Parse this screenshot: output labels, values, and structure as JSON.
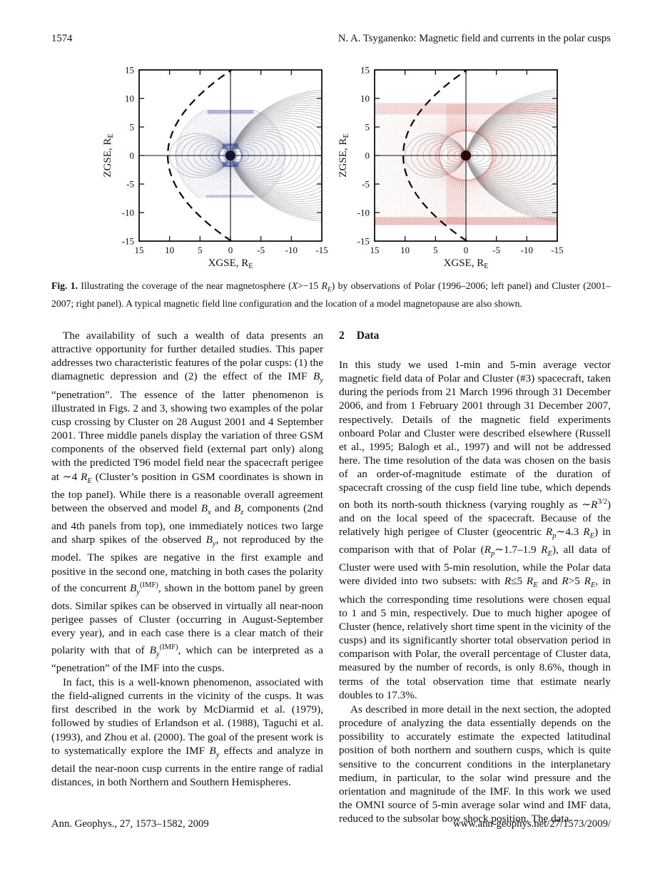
{
  "page": {
    "page_number": "1574",
    "running_title": "N. A. Tsyganenko: Magnetic field and currents in the polar cusps",
    "footer_left": "Ann. Geophys., 27, 1573–1582, 2009",
    "footer_right": "www.ann-geophys.net/27/1573/2009/"
  },
  "figure": {
    "caption_html": "<b>Fig. 1.</b> Illustrating the coverage of the near magnetosphere (<i>X</i>&gt;−15 <i>R<sub>E</sub></i>) by observations of Polar (1996–2006; left panel) and Cluster (2001–2007; right panel). A typical magnetic field line configuration and the location of a model magnetopause are also shown.",
    "axis": {
      "x_ticks": [
        15,
        10,
        5,
        0,
        -5,
        -10,
        -15
      ],
      "y_ticks": [
        15,
        10,
        5,
        0,
        -5,
        -10,
        -15
      ],
      "x_label": "XGSE, R",
      "x_label_sub": "E",
      "y_label": "ZGSE, R",
      "y_label_sub": "E"
    },
    "magnetopause": {
      "apex": 10.3,
      "flare": 21.5
    },
    "field_lines": {
      "color": "#9d9d9d",
      "night_L_max": 30,
      "day_L_max": 10
    },
    "panels": [
      {
        "id": "polar",
        "color": "#2e3d92",
        "dot_color": "#14142e",
        "halo_opacity": 0.3,
        "orbit": {
          "a": 5.4,
          "b": 4.02,
          "c": 3.6,
          "count": 72,
          "opacity": 0.3
        },
        "clip_z": [
          -7.4,
          8.0
        ],
        "patches": [
          {
            "x": [
              -3.8,
              3.8
            ],
            "z": [
              7.3,
              8.0
            ],
            "o": 0.35
          },
          {
            "x": [
              -4.0,
              4.0
            ],
            "z": [
              -7.4,
              -6.9
            ],
            "o": 0.25
          },
          {
            "x": [
              -1.3,
              1.3
            ],
            "z": [
              1.1,
              2.1
            ],
            "o": 0.5
          },
          {
            "x": [
              -1.3,
              1.3
            ],
            "z": [
              -2.0,
              -1.1
            ],
            "o": 0.5
          }
        ]
      },
      {
        "id": "cluster",
        "color": "#c23b2e",
        "dot_color": "#230a08",
        "halo_opacity": 0.25,
        "orbit": {
          "a": 11.95,
          "b": 9.18,
          "c": 7.65,
          "count": 100,
          "opacity": 0.26
        },
        "clip_z": [
          -12.2,
          9.2
        ],
        "patches": [
          {
            "x": [
              -15,
              15
            ],
            "z": [
              -12.2,
              -10.8
            ],
            "o": 0.28
          },
          {
            "x": [
              -15,
              15
            ],
            "z": [
              7.2,
              9.2
            ],
            "o": 0.16
          },
          {
            "x": [
              0.2,
              3.2
            ],
            "z": [
              -12.0,
              9.0
            ],
            "o": 0.12
          }
        ]
      }
    ]
  },
  "content": {
    "left": {
      "p1": "The availability of such a wealth of data presents an attractive opportunity for further detailed studies.  This paper addresses two characteristic features of the polar cusps: (1) the diamagnetic depression and (2) the effect of the IMF <i>B<sub>y</sub></i> “penetration”. The essence of the latter phenomenon is illustrated in Figs. 2 and 3, showing two examples of the polar cusp crossing by Cluster on 28 August 2001 and 4 September 2001. Three middle panels display the variation of three GSM components of the observed field (external part only) along with the predicted T96 model field near the spacecraft perigee at ∼4 <i>R<sub>E</sub></i> (Cluster’s position in GSM coordinates is shown in the top panel).  While there is a reasonable overall agreement between the observed and model <i>B<sub>x</sub></i> and <i>B<sub>z</sub></i> components (2nd and 4th panels from top), one immediately notices two large and sharp spikes of the observed <i>B<sub>y</sub></i>, not reproduced by the model. The spikes are negative in the first example and positive in the second one, matching in both cases the polarity of the concurrent <i>B<sub>y</sub></i><sup>(IMF)</sup>, shown in the bottom panel by green dots.  Similar spikes can be observed in virtually all near-noon perigee passes of Cluster (occurring in August-September every year), and in each case there is a clear match of their polarity with that of <i>B<sub>y</sub></i><sup>(IMF)</sup>, which can be interpreted as a “penetration” of the IMF into the cusps.",
      "p2": "In fact, this is a well-known phenomenon, associated with the field-aligned currents in the vicinity of the cusps.  It was first described in the work by McDiarmid et al. (1979), followed by studies of Erlandson et al. (1988), Taguchi et al. (1993), and Zhou et al. (2000).  The goal of the present work is to systematically explore the IMF <i>B<sub>y</sub></i> effects and analyze in detail the near-noon cusp currents in the entire range of radial distances, in both Northern and Southern Hemispheres."
    },
    "section": {
      "number": "2",
      "title": "Data"
    },
    "right": {
      "p1": "In this study we used 1-min and 5-min average vector magnetic field data of Polar and Cluster (#3) spacecraft, taken during the periods from 21 March 1996 through 31 December 2006, and from 1 February 2001 through 31 December 2007, respectively.  Details of the magnetic field experiments onboard Polar and Cluster were described elsewhere (Russell et al., 1995; Balogh et al., 1997) and will not be addressed here. The time resolution of the data was chosen on the basis of an order-of-magnitude estimate of the duration of spacecraft crossing of the cusp field line tube, which depends on both its north-south thickness (varying roughly as ∼<i>R</i><sup>3/2</sup>) and on the local speed of the spacecraft.  Because of the relatively high perigee of Cluster (geocentric <i>R<sub>p</sub></i>∼4.3 <i>R<sub>E</sub></i>) in comparison with that of Polar (<i>R<sub>p</sub></i>∼1.7–1.9 <i>R<sub>E</sub></i>), all data of Cluster were used with 5-min resolution, while the Polar data were divided into two subsets:  with <i>R</i>≤5 <i>R<sub>E</sub></i> and <i>R</i>&gt;5 <i>R<sub>E</sub></i>, in which the corresponding time resolutions were chosen equal to 1 and 5 min, respectively.  Due to much higher apogee of Cluster (hence, relatively short time spent in the vicinity of the cusps) and its significantly shorter total observation period in comparison with Polar, the overall percentage of Cluster data, measured by the number of records, is only 8.6%, though in terms of the total observation time that estimate nearly doubles to 17.3%.",
      "p2": "As described in more detail in the next section, the adopted procedure of analyzing the data essentially depends on the possibility to accurately estimate the expected latitudinal position of both northern and southern cusps, which is quite sensitive to the concurrent conditions in the interplanetary medium, in particular, to the solar wind pressure and the orientation and magnitude of the IMF. In this work we used the OMNI source of 5-min average solar wind and IMF data, reduced to the subsolar bow shock position.  The data"
    }
  },
  "chart_data": [
    {
      "type": "scatter",
      "title": "Polar orbital coverage 1996–2006 (left panel, blue point cloud)",
      "xlabel": "XGSE, RE",
      "ylabel": "ZGSE, RE",
      "x_tick_labels": [
        15,
        10,
        5,
        0,
        -5,
        -10,
        -15
      ],
      "y_tick_labels": [
        15,
        10,
        5,
        0,
        -5,
        -10,
        -15
      ],
      "x_axis_direction": "reversed (15 at left, -15 at right)",
      "y_range": [
        -15,
        15
      ],
      "series_color": "#2e3d92",
      "coverage_envelope": {
        "x_extent_RE": [
          -9,
          9
        ],
        "z_extent_RE": [
          -7.4,
          8.0
        ],
        "perigee_RE": 1.8,
        "apogee_RE": 9
      },
      "overlays": [
        "nested magnetic field lines (thin gray), closed on dayside, stretched tailward",
        "dashed model magnetopause, subsolar apex near X=10 RE",
        "solid crosshair axes through origin",
        "dark Earth dot at origin"
      ]
    },
    {
      "type": "scatter",
      "title": "Cluster orbital coverage 2001–2007 (right panel, red point cloud)",
      "xlabel": "XGSE, RE",
      "ylabel": "ZGSE, RE",
      "x_tick_labels": [
        15,
        10,
        5,
        0,
        -5,
        -10,
        -15
      ],
      "y_tick_labels": [
        15,
        10,
        5,
        0,
        -5,
        -10,
        -15
      ],
      "x_axis_direction": "reversed (15 at left, -15 at right)",
      "y_range": [
        -15,
        15
      ],
      "series_color": "#c23b2e",
      "coverage_envelope": {
        "x_extent_RE": [
          -15,
          15
        ],
        "z_extent_RE": [
          -12.2,
          9.2
        ],
        "perigee_RE": 4.3
      },
      "overlays": [
        "nested magnetic field lines (thin gray)",
        "dashed model magnetopause, subsolar apex near X=10 RE",
        "solid crosshair axes through origin",
        "dark Earth dot at origin"
      ]
    }
  ]
}
